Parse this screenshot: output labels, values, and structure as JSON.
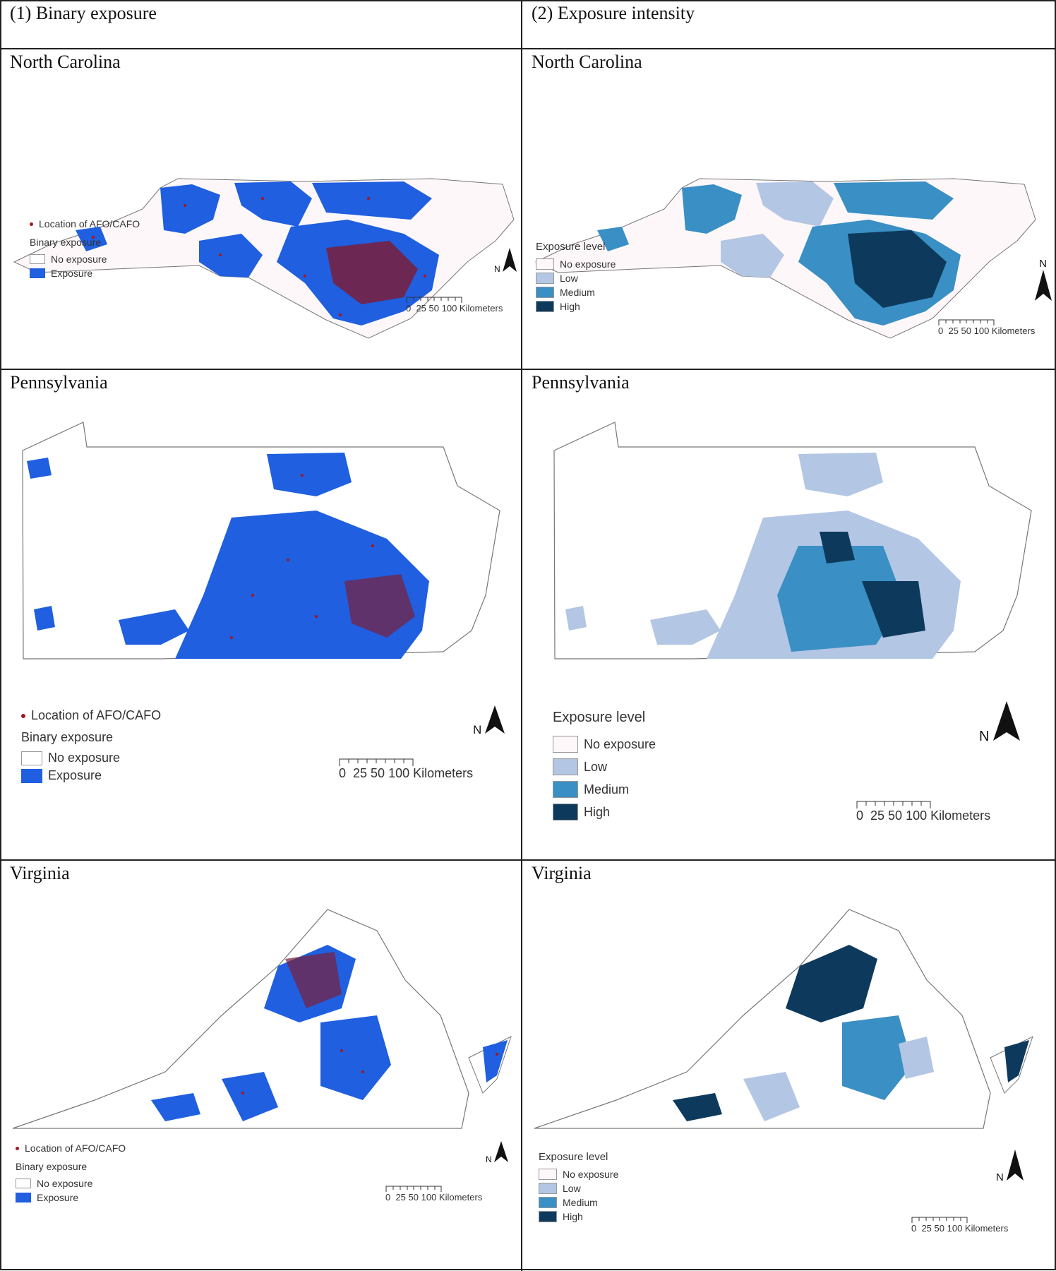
{
  "headers": {
    "col1": "(1) Binary exposure",
    "col2": "(2) Exposure intensity"
  },
  "states": {
    "nc": "North Carolina",
    "pa": "Pennsylvania",
    "va": "Virginia"
  },
  "legend": {
    "afo_label": "Location of AFO/CAFO",
    "binary_title": "Binary exposure",
    "no_exposure": "No exposure",
    "exposure": "Exposure",
    "level_title": "Exposure level",
    "low": "Low",
    "medium": "Medium",
    "high": "High"
  },
  "scale": {
    "ticks": "0  25 50",
    "unit_label": "100 Kilometers"
  },
  "north_label": "N",
  "colors": {
    "exposure_blue": "#1f5fe0",
    "afo_red": "#a3171c",
    "no_exposure_fill": "#fdf7fa",
    "low": "#b3c6e3",
    "medium": "#3a8fc4",
    "high": "#0d3a5c",
    "border": "#222222"
  }
}
